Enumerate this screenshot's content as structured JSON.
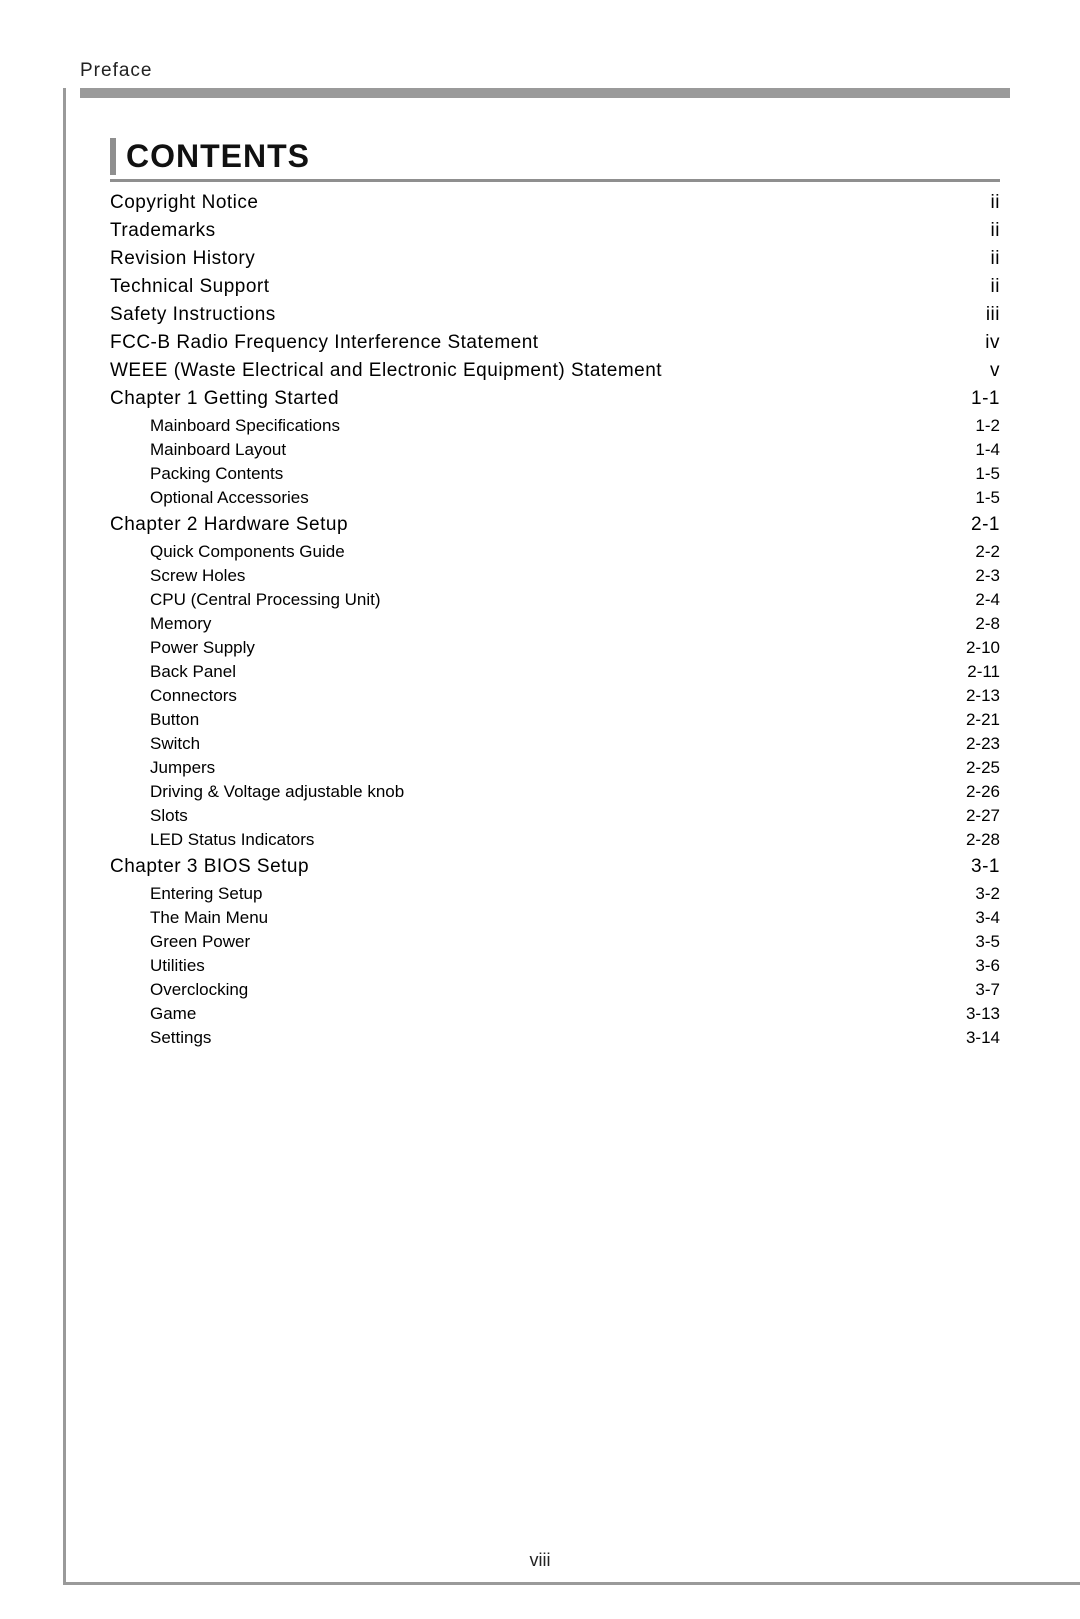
{
  "section_label": "Preface",
  "heading": "CONTENTS",
  "page_number": "viii",
  "colors": {
    "rule_grey": "#9a9a9a",
    "text": "#222222",
    "background": "#ffffff"
  },
  "typography": {
    "heading_fontsize_pt": 24,
    "level0_fontsize_pt": 14,
    "level1_fontsize_pt": 12,
    "font_family": "Arial"
  },
  "toc": [
    {
      "label": "Copyright  Notice",
      "page": "ii",
      "level": 0
    },
    {
      "label": "Trademarks",
      "page": "ii",
      "level": 0
    },
    {
      "label": "Revision  History",
      "page": "ii",
      "level": 0
    },
    {
      "label": "Technical  Support",
      "page": "ii",
      "level": 0
    },
    {
      "label": "Safety  Instructions",
      "page": "iii",
      "level": 0
    },
    {
      "label": "FCC-B Radio Frequency Interference Statement",
      "page": "iv",
      "level": 0
    },
    {
      "label": "WEEE (Waste Electrical and Electronic Equipment) Statement",
      "page": "v",
      "level": 0
    },
    {
      "label": "Chapter 1 Getting Started",
      "page": "1-1",
      "level": 0
    },
    {
      "label": "Mainboard Specifications",
      "page": "1-2",
      "level": 1
    },
    {
      "label": "Mainboard Layout",
      "page": "1-4",
      "level": 1
    },
    {
      "label": "Packing Contents",
      "page": "1-5",
      "level": 1
    },
    {
      "label": "Optional Accessories",
      "page": "1-5",
      "level": 1
    },
    {
      "label": "Chapter 2 Hardware Setup",
      "page": "2-1",
      "level": 0
    },
    {
      "label": "Quick Components Guide",
      "page": "2-2",
      "level": 1
    },
    {
      "label": "Screw Holes",
      "page": "2-3",
      "level": 1
    },
    {
      "label": "CPU (Central Processing Unit)",
      "page": "2-4",
      "level": 1
    },
    {
      "label": "Memory",
      "page": "2-8",
      "level": 1
    },
    {
      "label": "Power Supply",
      "page": "2-10",
      "level": 1
    },
    {
      "label": "Back Panel",
      "page": "2-11",
      "level": 1
    },
    {
      "label": "Connectors",
      "page": "2-13",
      "level": 1
    },
    {
      "label": "Button",
      "page": "2-21",
      "level": 1
    },
    {
      "label": "Switch",
      "page": "2-23",
      "level": 1
    },
    {
      "label": "Jumpers",
      "page": "2-25",
      "level": 1
    },
    {
      "label": "Driving & Voltage adjustable knob",
      "page": "2-26",
      "level": 1
    },
    {
      "label": "Slots",
      "page": "2-27",
      "level": 1
    },
    {
      "label": "LED Status Indicators",
      "page": "2-28",
      "level": 1
    },
    {
      "label": "Chapter 3 BIOS Setup",
      "page": "3-1",
      "level": 0
    },
    {
      "label": "Entering Setup",
      "page": "3-2",
      "level": 1
    },
    {
      "label": "The Main Menu",
      "page": "3-4",
      "level": 1
    },
    {
      "label": "Green Power",
      "page": "3-5",
      "level": 1
    },
    {
      "label": "Utilities",
      "page": "3-6",
      "level": 1
    },
    {
      "label": "Overclocking",
      "page": "3-7",
      "level": 1
    },
    {
      "label": "Game",
      "page": "3-13",
      "level": 1
    },
    {
      "label": "Settings",
      "page": "3-14",
      "level": 1
    }
  ]
}
